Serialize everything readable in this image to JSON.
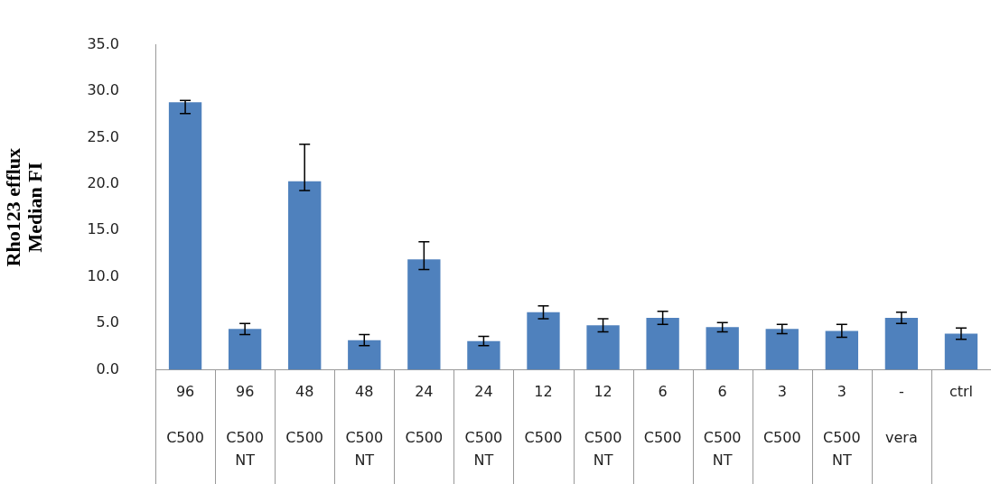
{
  "chart_data": {
    "type": "bar",
    "ylabel": "Rho123 efflux\nMedian FI",
    "categories": [
      "96\nC500",
      "96\nC500\nNT",
      "48\nC500",
      "48\nC500\nNT",
      "24\nC500",
      "24\nC500\nNT",
      "12\nC500",
      "12\nC500\nNT",
      "6\nC500",
      "6\nC500\nNT",
      "3\nC500",
      "3\nC500\nNT",
      "-\nvera",
      "ctrl"
    ],
    "values": [
      28.8,
      4.4,
      20.3,
      3.2,
      11.9,
      3.1,
      6.2,
      4.8,
      5.6,
      4.6,
      4.4,
      4.2,
      5.6,
      3.9
    ],
    "errors": [
      [
        27.6,
        29.0
      ],
      0.6,
      [
        19.3,
        24.3
      ],
      0.6,
      [
        10.8,
        13.8
      ],
      0.5,
      0.7,
      0.7,
      0.7,
      0.5,
      0.5,
      0.7,
      0.6,
      0.6
    ],
    "color": "#4f81bd",
    "ylim": [
      0,
      35
    ],
    "yticks": [
      {
        "value": 0,
        "label": "0.0"
      },
      {
        "value": 5,
        "label": "5.0"
      },
      {
        "value": 10,
        "label": "10.0"
      },
      {
        "value": 15,
        "label": "15.0"
      },
      {
        "value": 20,
        "label": "20.0"
      },
      {
        "value": 25,
        "label": "25.0"
      },
      {
        "value": 30,
        "label": "30.0"
      },
      {
        "value": 35,
        "label": "35.0"
      }
    ],
    "grid": false,
    "legend": false
  }
}
